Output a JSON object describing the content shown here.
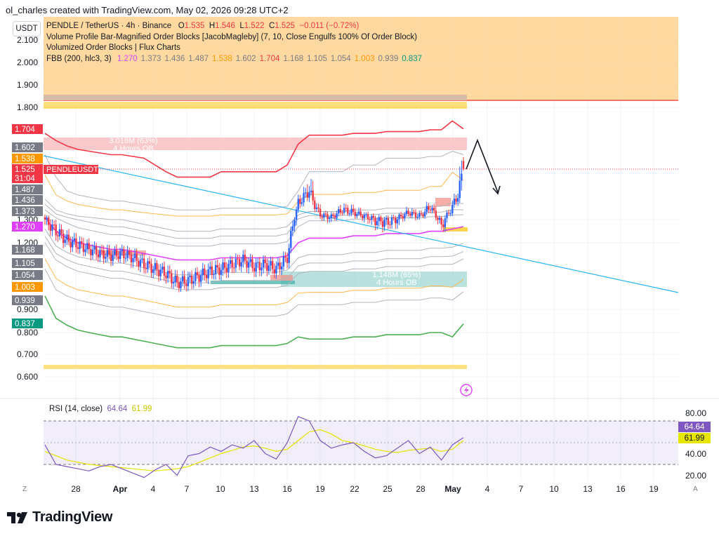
{
  "header": {
    "text": "ol_charles created with TradingView.com, May 02, 2026 09:28 UTC+2"
  },
  "currency_label": "USDT",
  "legend": {
    "symbol_line": {
      "symbol": "PENDLE / TetherUS · 4h · Binance",
      "o_label": "O",
      "o": "1.535",
      "h_label": "H",
      "h": "1.546",
      "l_label": "L",
      "l": "1.522",
      "c_label": "C",
      "c": "1.525",
      "change": "−0.011 (−0.72%)"
    },
    "indicator_1": "Volume Profile Bar-Magnified Order Blocks [JacobMagleby] (7, 10, Close Engulfs 100% Of Order Block)",
    "indicator_2": "Volumized Order Blocks | Flux Charts",
    "fbb": {
      "label": "FBB (200, hlc3, 3)",
      "values": [
        {
          "v": "1.270",
          "color": "#e040fb"
        },
        {
          "v": "1.373",
          "color": "#787b86"
        },
        {
          "v": "1.436",
          "color": "#787b86"
        },
        {
          "v": "1.487",
          "color": "#787b86"
        },
        {
          "v": "1.538",
          "color": "#ff9800"
        },
        {
          "v": "1.602",
          "color": "#787b86"
        },
        {
          "v": "1.704",
          "color": "#f23645"
        },
        {
          "v": "1.168",
          "color": "#787b86"
        },
        {
          "v": "1.105",
          "color": "#787b86"
        },
        {
          "v": "1.054",
          "color": "#787b86"
        },
        {
          "v": "1.003",
          "color": "#ff9800"
        },
        {
          "v": "0.939",
          "color": "#787b86"
        },
        {
          "v": "0.837",
          "color": "#089981"
        }
      ]
    }
  },
  "price_axis": {
    "ticks": [
      "2.100",
      "2.000",
      "1.900",
      "1.800",
      "1.300",
      "1.200",
      "0.900",
      "0.800",
      "0.700",
      "0.600"
    ],
    "pills": [
      {
        "text": "1.704",
        "bg": "#f23645",
        "fg": "#ffffff"
      },
      {
        "text": "1.602",
        "bg": "#787b86",
        "fg": "#ffffff"
      },
      {
        "text": "1.538",
        "bg": "#ff9800",
        "fg": "#ffffff"
      },
      {
        "text": "1.525",
        "bg": "#f23645",
        "fg": "#ffffff"
      },
      {
        "text": "31:04",
        "bg": "#f23645",
        "fg": "#ffffff"
      },
      {
        "text": "1.487",
        "bg": "#787b86",
        "fg": "#ffffff"
      },
      {
        "text": "1.436",
        "bg": "#787b86",
        "fg": "#ffffff"
      },
      {
        "text": "1.373",
        "bg": "#787b86",
        "fg": "#ffffff"
      },
      {
        "text": "1.270",
        "bg": "#e040fb",
        "fg": "#ffffff"
      },
      {
        "text": "1.168",
        "bg": "#787b86",
        "fg": "#ffffff"
      },
      {
        "text": "1.105",
        "bg": "#787b86",
        "fg": "#ffffff"
      },
      {
        "text": "1.054",
        "bg": "#787b86",
        "fg": "#ffffff"
      },
      {
        "text": "1.003",
        "bg": "#ff9800",
        "fg": "#ffffff"
      },
      {
        "text": "0.939",
        "bg": "#787b86",
        "fg": "#ffffff"
      },
      {
        "text": "0.837",
        "bg": "#089981",
        "fg": "#ffffff"
      }
    ],
    "symbol_tag": "PENDLEUSDT"
  },
  "order_blocks": {
    "bear_ob_label_1": "3.018M (63%)",
    "bear_ob_label_2": "4 Hours OB",
    "bull_ob_label_1": "1.148M (65%)",
    "bull_ob_label_2": "4 Hours OB"
  },
  "rsi": {
    "label": "RSI (14, close)",
    "value": "64.64",
    "ma_value": "61.99",
    "value_color": "#7e57c2",
    "ma_color": "#e5e500",
    "axis_ticks": [
      "80.00",
      "40.00",
      "20.00"
    ],
    "pill_rsi": "64.64",
    "pill_ma": "61.99"
  },
  "time_axis": {
    "ticks": [
      "28",
      "Apr",
      "4",
      "7",
      "10",
      "13",
      "16",
      "19",
      "22",
      "25",
      "28",
      "May",
      "4",
      "7",
      "10",
      "13",
      "16",
      "19"
    ],
    "bold": [
      "Apr",
      "May"
    ]
  },
  "corner_left": "Z",
  "corner_right": "A",
  "brand": "TradingView",
  "colors": {
    "bull": "#2962ff",
    "bear": "#f23645",
    "upper_band": "#f23645",
    "lower_band": "#4caf50",
    "basis": "#e040fb",
    "trendline": "#29b6f6",
    "header_band": "#ffcc80"
  },
  "chart_data": {
    "type": "candlestick",
    "symbol": "PENDLE / TetherUS",
    "timeframe": "4h",
    "exchange": "Binance",
    "last_price": 1.525,
    "ohlc": {
      "open": 1.535,
      "high": 1.546,
      "low": 1.522,
      "close": 1.525
    },
    "x_dates": [
      "Mar 25",
      "Mar 26",
      "Mar 27",
      "Mar 28",
      "Mar 29",
      "Mar 30",
      "Mar 31",
      "Apr 1",
      "Apr 2",
      "Apr 3",
      "Apr 4",
      "Apr 5",
      "Apr 6",
      "Apr 7",
      "Apr 8",
      "Apr 9",
      "Apr 10",
      "Apr 11",
      "Apr 12",
      "Apr 13",
      "Apr 14",
      "Apr 15",
      "Apr 16",
      "Apr 17",
      "Apr 18",
      "Apr 19",
      "Apr 20",
      "Apr 21",
      "Apr 22",
      "Apr 23",
      "Apr 24",
      "Apr 25",
      "Apr 26",
      "Apr 27",
      "Apr 28",
      "Apr 29",
      "Apr 30",
      "May 1",
      "May 2"
    ],
    "close_series": [
      1.3,
      1.25,
      1.21,
      1.19,
      1.17,
      1.15,
      1.14,
      1.15,
      1.13,
      1.1,
      1.08,
      1.06,
      1.02,
      1.03,
      1.05,
      1.07,
      1.08,
      1.1,
      1.12,
      1.09,
      1.1,
      1.08,
      1.13,
      1.42,
      1.48,
      1.34,
      1.32,
      1.38,
      1.36,
      1.33,
      1.3,
      1.29,
      1.31,
      1.36,
      1.33,
      1.4,
      1.27,
      1.4,
      1.525
    ],
    "fbb_levels": {
      "1.704": "upper 3",
      "1.602": "upper 2",
      "1.538": "upper 1.618",
      "1.487": "upper 1",
      "1.436": "upper 0.764",
      "1.373": "upper 0.5",
      "1.270": "basis",
      "1.168": "lower 0.5",
      "1.105": "lower 0.764",
      "1.054": "lower 1",
      "1.003": "lower 1.618",
      "0.939": "lower 2",
      "0.837": "lower 3"
    },
    "rsi_series": [
      58,
      40,
      38,
      36,
      34,
      38,
      40,
      36,
      32,
      28,
      35,
      40,
      30,
      48,
      50,
      56,
      52,
      58,
      55,
      62,
      50,
      45,
      60,
      84,
      80,
      62,
      55,
      58,
      60,
      52,
      46,
      48,
      55,
      62,
      50,
      56,
      44,
      58,
      64.64
    ],
    "rsi_ma_series": [
      52,
      48,
      44,
      42,
      40,
      39,
      38,
      37,
      36,
      35,
      34,
      35,
      36,
      38,
      42,
      46,
      50,
      53,
      56,
      57,
      55,
      52,
      54,
      62,
      70,
      72,
      68,
      62,
      60,
      57,
      54,
      52,
      51,
      53,
      54,
      55,
      52,
      54,
      61.99
    ],
    "ylim": [
      0.55,
      2.15
    ],
    "rsi_ylim": [
      20,
      90
    ]
  }
}
